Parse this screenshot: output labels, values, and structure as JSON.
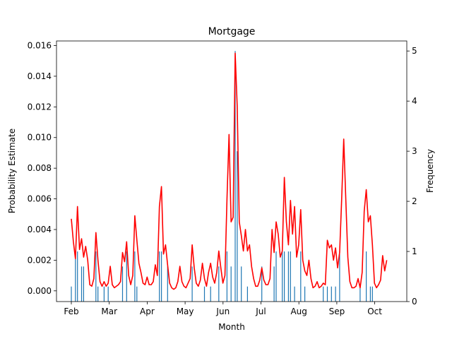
{
  "chart_data": {
    "type": "bar+line",
    "title": "Mortgage",
    "xlabel": "Month",
    "ylabel": "Probability Estimate",
    "y2label": "Frequency",
    "x_ticks": [
      "Feb",
      "Mar",
      "Apr",
      "May",
      "Jun",
      "Jul",
      "Aug",
      "Sep",
      "Oct"
    ],
    "ylim": [
      -0.0007,
      0.0163
    ],
    "y_ticks": [
      0.0,
      0.002,
      0.004,
      0.006,
      0.008,
      0.01,
      0.012,
      0.014,
      0.016
    ],
    "y_tick_labels": [
      "0.000",
      "0.002",
      "0.004",
      "0.006",
      "0.008",
      "0.010",
      "0.012",
      "0.014",
      "0.016"
    ],
    "y2lim": [
      0,
      5.2
    ],
    "y2_ticks": [
      0,
      1,
      2,
      3,
      4,
      5
    ],
    "grid": false,
    "series": [
      {
        "type": "line",
        "color": "#ff0000",
        "axis": "left",
        "points": [
          [
            1,
            0.0047
          ],
          [
            2,
            0.0032
          ],
          [
            3,
            0.0021
          ],
          [
            4,
            0.0055
          ],
          [
            5,
            0.0027
          ],
          [
            6,
            0.0034
          ],
          [
            7,
            0.0022
          ],
          [
            8,
            0.0029
          ],
          [
            9,
            0.002
          ],
          [
            10,
            0.0004
          ],
          [
            11,
            0.0003
          ],
          [
            12,
            0.0008
          ],
          [
            13,
            0.0038
          ],
          [
            14,
            0.002
          ],
          [
            15,
            0.0006
          ],
          [
            16,
            0.0003
          ],
          [
            17,
            0.0006
          ],
          [
            18,
            0.0003
          ],
          [
            19,
            0.0005
          ],
          [
            20,
            0.0016
          ],
          [
            21,
            0.0004
          ],
          [
            22,
            0.0002
          ],
          [
            23,
            0.0003
          ],
          [
            24,
            0.0004
          ],
          [
            25,
            0.0006
          ],
          [
            26,
            0.0025
          ],
          [
            27,
            0.0019
          ],
          [
            28,
            0.0032
          ],
          [
            29,
            0.001
          ],
          [
            30,
            0.0004
          ],
          [
            31,
            0.001
          ],
          [
            32,
            0.0049
          ],
          [
            33,
            0.0033
          ],
          [
            34,
            0.0018
          ],
          [
            35,
            0.0012
          ],
          [
            36,
            0.0005
          ],
          [
            37,
            0.0004
          ],
          [
            38,
            0.0009
          ],
          [
            39,
            0.0004
          ],
          [
            40,
            0.0004
          ],
          [
            41,
            0.0006
          ],
          [
            42,
            0.0017
          ],
          [
            43,
            0.001
          ],
          [
            44,
            0.0055
          ],
          [
            45,
            0.0068
          ],
          [
            46,
            0.0024
          ],
          [
            47,
            0.003
          ],
          [
            48,
            0.0017
          ],
          [
            49,
            0.0005
          ],
          [
            50,
            0.0002
          ],
          [
            51,
            0.0001
          ],
          [
            52,
            0.0002
          ],
          [
            53,
            0.0006
          ],
          [
            54,
            0.0016
          ],
          [
            55,
            0.0006
          ],
          [
            56,
            0.0003
          ],
          [
            57,
            0.0002
          ],
          [
            58,
            0.0005
          ],
          [
            59,
            0.0008
          ],
          [
            60,
            0.003
          ],
          [
            61,
            0.0015
          ],
          [
            62,
            0.0005
          ],
          [
            63,
            0.0003
          ],
          [
            64,
            0.0007
          ],
          [
            65,
            0.0018
          ],
          [
            66,
            0.0008
          ],
          [
            67,
            0.0003
          ],
          [
            68,
            0.0012
          ],
          [
            69,
            0.0018
          ],
          [
            70,
            0.0009
          ],
          [
            71,
            0.0005
          ],
          [
            72,
            0.0012
          ],
          [
            73,
            0.0026
          ],
          [
            74,
            0.0015
          ],
          [
            75,
            0.0005
          ],
          [
            76,
            0.001
          ],
          [
            77,
            0.006
          ],
          [
            78,
            0.0102
          ],
          [
            79,
            0.0045
          ],
          [
            80,
            0.0048
          ],
          [
            81,
            0.0155
          ],
          [
            82,
            0.012
          ],
          [
            83,
            0.0045
          ],
          [
            84,
            0.0036
          ],
          [
            85,
            0.0026
          ],
          [
            86,
            0.004
          ],
          [
            87,
            0.0026
          ],
          [
            88,
            0.003
          ],
          [
            89,
            0.0016
          ],
          [
            90,
            0.0008
          ],
          [
            91,
            0.0003
          ],
          [
            92,
            0.0003
          ],
          [
            93,
            0.0007
          ],
          [
            94,
            0.0015
          ],
          [
            95,
            0.0007
          ],
          [
            96,
            0.0004
          ],
          [
            97,
            0.0004
          ],
          [
            98,
            0.0008
          ],
          [
            99,
            0.004
          ],
          [
            100,
            0.0025
          ],
          [
            101,
            0.0045
          ],
          [
            102,
            0.0037
          ],
          [
            103,
            0.0022
          ],
          [
            104,
            0.0026
          ],
          [
            105,
            0.0074
          ],
          [
            106,
            0.0045
          ],
          [
            107,
            0.003
          ],
          [
            108,
            0.0059
          ],
          [
            109,
            0.0037
          ],
          [
            110,
            0.0055
          ],
          [
            111,
            0.0022
          ],
          [
            112,
            0.003
          ],
          [
            113,
            0.0053
          ],
          [
            114,
            0.002
          ],
          [
            115,
            0.0013
          ],
          [
            116,
            0.001
          ],
          [
            117,
            0.002
          ],
          [
            118,
            0.0008
          ],
          [
            119,
            0.0002
          ],
          [
            120,
            0.0003
          ],
          [
            121,
            0.0006
          ],
          [
            122,
            0.0002
          ],
          [
            123,
            0.0003
          ],
          [
            124,
            0.0005
          ],
          [
            125,
            0.0004
          ],
          [
            126,
            0.0033
          ],
          [
            127,
            0.0028
          ],
          [
            128,
            0.003
          ],
          [
            129,
            0.002
          ],
          [
            130,
            0.0028
          ],
          [
            131,
            0.0015
          ],
          [
            132,
            0.0025
          ],
          [
            133,
            0.006
          ],
          [
            134,
            0.0099
          ],
          [
            135,
            0.006
          ],
          [
            136,
            0.0022
          ],
          [
            137,
            0.0006
          ],
          [
            138,
            0.0002
          ],
          [
            139,
            0.0002
          ],
          [
            140,
            0.0003
          ],
          [
            141,
            0.0008
          ],
          [
            142,
            0.0002
          ],
          [
            143,
            0.0012
          ],
          [
            144,
            0.0052
          ],
          [
            145,
            0.0066
          ],
          [
            146,
            0.0045
          ],
          [
            147,
            0.0049
          ],
          [
            148,
            0.003
          ],
          [
            149,
            0.0005
          ],
          [
            150,
            0.0002
          ],
          [
            151,
            0.0004
          ],
          [
            152,
            0.0007
          ],
          [
            153,
            0.0023
          ],
          [
            154,
            0.0013
          ],
          [
            155,
            0.002
          ]
        ]
      },
      {
        "type": "bar",
        "color": "#1f77b4",
        "axis": "right",
        "bars": [
          [
            1,
            0.3
          ],
          [
            3,
            1.0
          ],
          [
            4,
            1.0
          ],
          [
            6,
            0.7
          ],
          [
            7,
            0.7
          ],
          [
            13,
            1.0
          ],
          [
            14,
            0.3
          ],
          [
            17,
            0.3
          ],
          [
            19,
            0.3
          ],
          [
            26,
            0.7
          ],
          [
            28,
            1.0
          ],
          [
            32,
            1.0
          ],
          [
            33,
            0.3
          ],
          [
            44,
            1.0
          ],
          [
            45,
            1.0
          ],
          [
            48,
            0.7
          ],
          [
            60,
            0.7
          ],
          [
            66,
            0.3
          ],
          [
            69,
            0.3
          ],
          [
            73,
            0.7
          ],
          [
            77,
            1.0
          ],
          [
            79,
            0.7
          ],
          [
            81,
            5.0
          ],
          [
            82,
            3.0
          ],
          [
            84,
            0.7
          ],
          [
            87,
            0.3
          ],
          [
            94,
            0.7
          ],
          [
            100,
            0.7
          ],
          [
            101,
            1.0
          ],
          [
            104,
            1.0
          ],
          [
            105,
            1.0
          ],
          [
            107,
            1.0
          ],
          [
            108,
            1.0
          ],
          [
            110,
            0.3
          ],
          [
            113,
            1.0
          ],
          [
            115,
            0.3
          ],
          [
            124,
            0.3
          ],
          [
            126,
            0.3
          ],
          [
            128,
            0.3
          ],
          [
            130,
            0.3
          ],
          [
            132,
            1.0
          ],
          [
            142,
            0.3
          ],
          [
            145,
            1.0
          ],
          [
            147,
            0.3
          ],
          [
            148,
            0.3
          ]
        ]
      }
    ]
  }
}
